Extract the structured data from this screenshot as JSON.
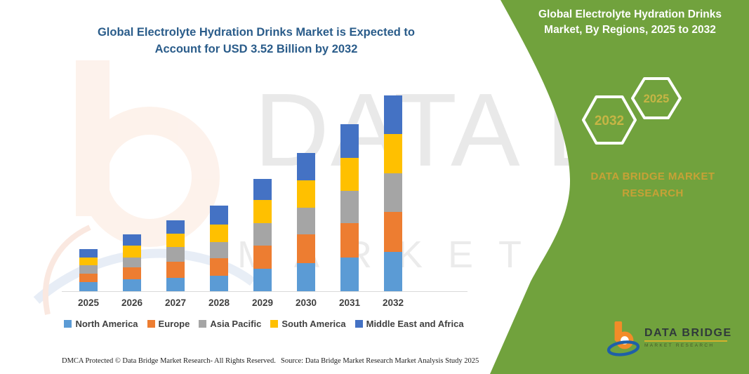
{
  "main_title": {
    "line1": "Global Electrolyte Hydration Drinks Market is Expected to",
    "line2": "Account for USD 3.52 Billion by 2032"
  },
  "side_panel": {
    "title": "Global Electrolyte Hydration Drinks Market, By Regions, 2025 to 2032",
    "hexagons": [
      {
        "label": "2032"
      },
      {
        "label": "2025"
      }
    ],
    "brand_line1": "DATA BRIDGE MARKET",
    "brand_line2": "RESEARCH",
    "logo": {
      "name": "DATA BRIDGE",
      "tagline": "MARKET RESEARCH"
    }
  },
  "watermark": {
    "line1": "DATA BRIDGE",
    "line2": "MARKET RESEARCH"
  },
  "chart_data": {
    "type": "bar",
    "stacked": true,
    "title": "Global Electrolyte Hydration Drinks Market, By Regions, 2025 to 2032",
    "unit": "USD Billion",
    "categories": [
      "2025",
      "2026",
      "2027",
      "2028",
      "2029",
      "2030",
      "2031",
      "2032"
    ],
    "series": [
      {
        "name": "North America",
        "color": "#5B9BD5",
        "values": [
          0.16,
          0.22,
          0.24,
          0.28,
          0.4,
          0.5,
          0.61,
          0.71
        ]
      },
      {
        "name": "Europe",
        "color": "#ED7D31",
        "values": [
          0.15,
          0.21,
          0.29,
          0.31,
          0.42,
          0.52,
          0.61,
          0.72
        ]
      },
      {
        "name": "Asia Pacific",
        "color": "#A5A5A5",
        "values": [
          0.16,
          0.18,
          0.27,
          0.29,
          0.4,
          0.48,
          0.59,
          0.69
        ]
      },
      {
        "name": "South America",
        "color": "#FFC000",
        "values": [
          0.14,
          0.21,
          0.24,
          0.32,
          0.42,
          0.5,
          0.59,
          0.71
        ]
      },
      {
        "name": "Middle East and Africa",
        "color": "#4472C4",
        "values": [
          0.15,
          0.2,
          0.24,
          0.34,
          0.38,
          0.49,
          0.61,
          0.69
        ]
      }
    ],
    "totals": [
      0.76,
      1.02,
      1.28,
      1.54,
      2.02,
      2.49,
      3.01,
      3.52
    ],
    "ylim": [
      0,
      3.6
    ],
    "grid": false,
    "legend_position": "bottom",
    "annotations": {
      "projected_total_2032": "USD 3.52 Billion"
    }
  },
  "footer": {
    "left": "DMCA Protected © Data Bridge Market Research-  All Rights Reserved.",
    "source": "Source: Data Bridge Market Research  Market Analysis Study 2025"
  },
  "colors": {
    "panel_green": "#71A23D",
    "gold_brand": "#C7A136",
    "gold_year": "#C6B545",
    "title_blue": "#2A5C8A",
    "axis_line": "#D9D9D9",
    "axis_text": "#404040",
    "logo_orange": "#F28C28",
    "logo_blue": "#1F5FA8"
  }
}
